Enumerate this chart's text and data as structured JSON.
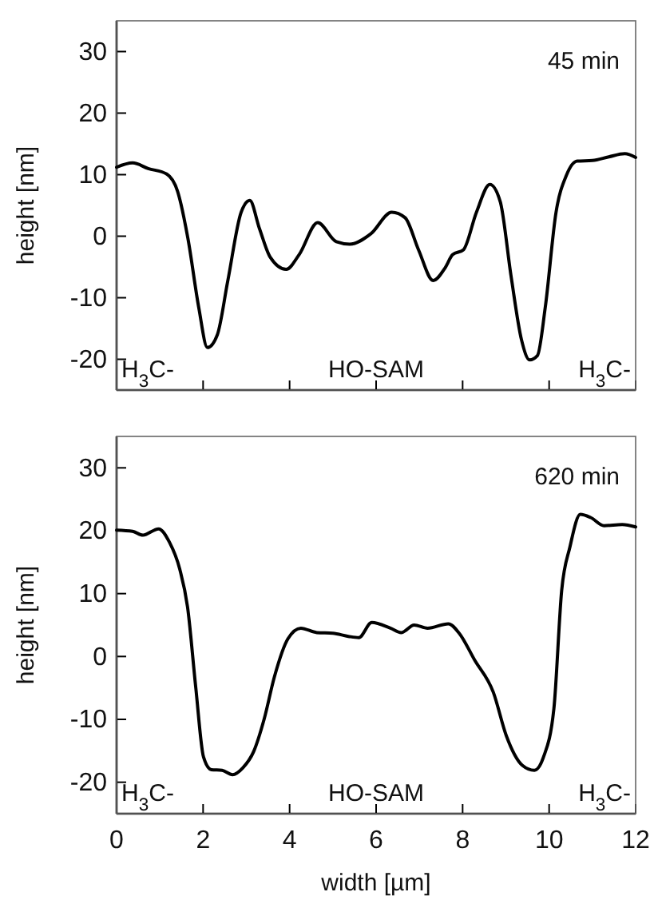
{
  "chart_data": [
    {
      "type": "line",
      "ylabel": "height [nm]",
      "xlim": [
        0,
        12
      ],
      "ylim": [
        -25,
        35
      ],
      "xticks": [
        0,
        2,
        4,
        6,
        8,
        10,
        12
      ],
      "yticks": [
        -20,
        -10,
        0,
        10,
        20,
        30
      ],
      "tick_labels": "y",
      "marker": "none",
      "line_style": "solid",
      "annotations": [
        "45 min",
        "H$_{3}$C-",
        "HO-SAM",
        "H$_{3}$C-"
      ],
      "series": [
        {
          "color": "#000000",
          "x": [
            0,
            0.37,
            0.73,
            1.16,
            1.41,
            1.65,
            1.9,
            2.1,
            2.33,
            2.57,
            2.88,
            3.08,
            3.3,
            3.55,
            3.92,
            4.22,
            4.65,
            5.08,
            5.39,
            5.88,
            6.36,
            6.67,
            6.98,
            7.32,
            7.59,
            7.77,
            8.02,
            8.32,
            8.63,
            8.87,
            9.12,
            9.36,
            9.55,
            9.73,
            9.91,
            10.16,
            10.4,
            10.65,
            11.0,
            11.38,
            11.75,
            12
          ],
          "values": [
            11.2,
            11.9,
            11,
            10.1,
            7.3,
            -0.4,
            -11.6,
            -18.1,
            -16,
            -7.3,
            3.9,
            5.8,
            1.3,
            -3.4,
            -5.4,
            -3,
            2.2,
            -0.9,
            -1.3,
            0.4,
            3.9,
            3,
            -2.2,
            -7.2,
            -5.2,
            -3,
            -2.2,
            3.9,
            8.4,
            5.6,
            -6.5,
            -16.8,
            -20.1,
            -19.4,
            -11.6,
            3.9,
            9.9,
            12.2,
            12.3,
            12.9,
            13.4,
            12.8
          ]
        }
      ]
    },
    {
      "type": "line",
      "xlabel": "width [µm]",
      "ylabel": "height [nm]",
      "xlim": [
        0,
        12
      ],
      "ylim": [
        -25,
        35
      ],
      "xticks": [
        0,
        2,
        4,
        6,
        8,
        10,
        12
      ],
      "yticks": [
        -20,
        -10,
        0,
        10,
        20,
        30
      ],
      "marker": "none",
      "line_style": "solid",
      "annotations": [
        "620 min",
        "H$_{3}$C-",
        "HO-SAM",
        "H$_{3}$C-"
      ],
      "series": [
        {
          "color": "#000000",
          "x": [
            0,
            0.37,
            0.61,
            0.97,
            1.22,
            1.46,
            1.64,
            1.83,
            2.01,
            2.19,
            2.44,
            2.68,
            2.92,
            3.17,
            3.41,
            3.65,
            3.96,
            4.26,
            4.63,
            5.0,
            5.36,
            5.6,
            5.9,
            6.33,
            6.58,
            6.88,
            7.19,
            7.67,
            7.92,
            8.28,
            8.71,
            9.01,
            9.38,
            9.66,
            9.87,
            10.11,
            10.29,
            10.48,
            10.72,
            10.96,
            11.27,
            11.69,
            12
          ],
          "values": [
            20.1,
            19.9,
            19.3,
            20.3,
            18.2,
            13.9,
            7.9,
            -4.9,
            -16,
            -18,
            -18.1,
            -18.8,
            -17.7,
            -15.1,
            -10,
            -3.2,
            2.8,
            4.5,
            3.8,
            3.7,
            3.2,
            3,
            5.4,
            4.5,
            3.8,
            5,
            4.5,
            5.2,
            3.7,
            -0.6,
            -5.7,
            -12.6,
            -17.3,
            -18.1,
            -16,
            -8.3,
            10.5,
            17.4,
            22.6,
            22.1,
            20.8,
            21,
            20.6
          ]
        }
      ]
    }
  ]
}
